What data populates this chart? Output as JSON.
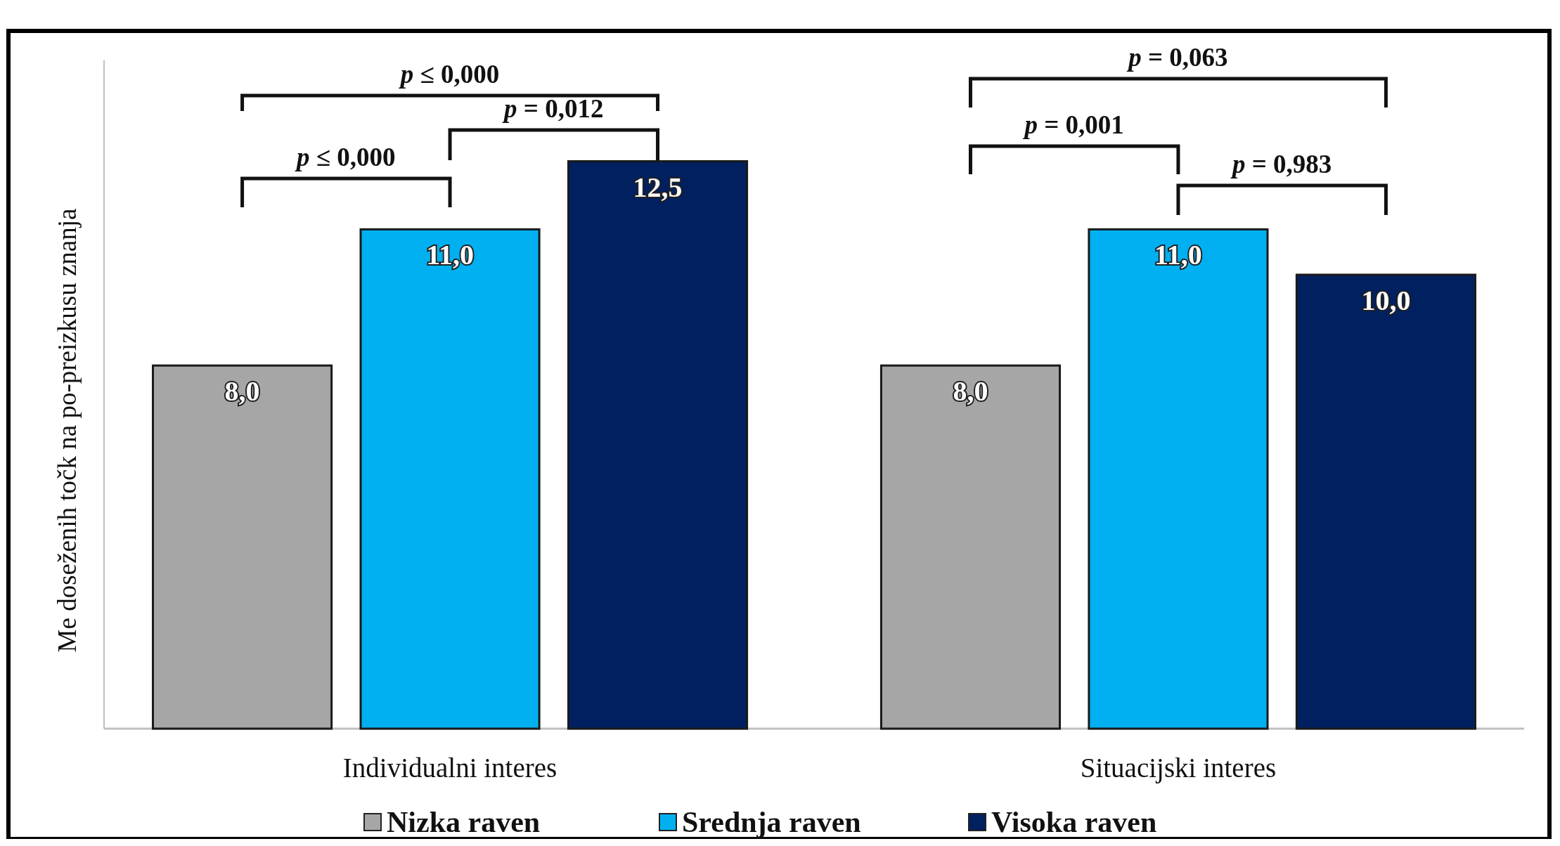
{
  "chart_data": {
    "type": "bar",
    "ylabel": "Me doseženih točk na po-preizkusu znanja",
    "categories": [
      "Individualni interes",
      "Situacijski interes"
    ],
    "series": [
      {
        "name": "Nizka raven",
        "color": "#a6a6a6",
        "values": [
          8.0,
          8.0
        ],
        "value_labels": [
          "8,0",
          "8,0"
        ]
      },
      {
        "name": "Srednja raven",
        "color": "#00b0f0",
        "values": [
          11.0,
          11.0
        ],
        "value_labels": [
          "11,0",
          "11,0"
        ]
      },
      {
        "name": "Visoka raven",
        "color": "#002060",
        "values": [
          12.5,
          10.0
        ],
        "value_labels": [
          "12,5",
          "10,0"
        ]
      }
    ],
    "annotations": [
      "p ≤ 0,000",
      "p = 0,012",
      "p ≤ 0,000",
      "p = 0,063",
      "p = 0,001",
      "p = 0,983"
    ],
    "legend": "bottom"
  }
}
